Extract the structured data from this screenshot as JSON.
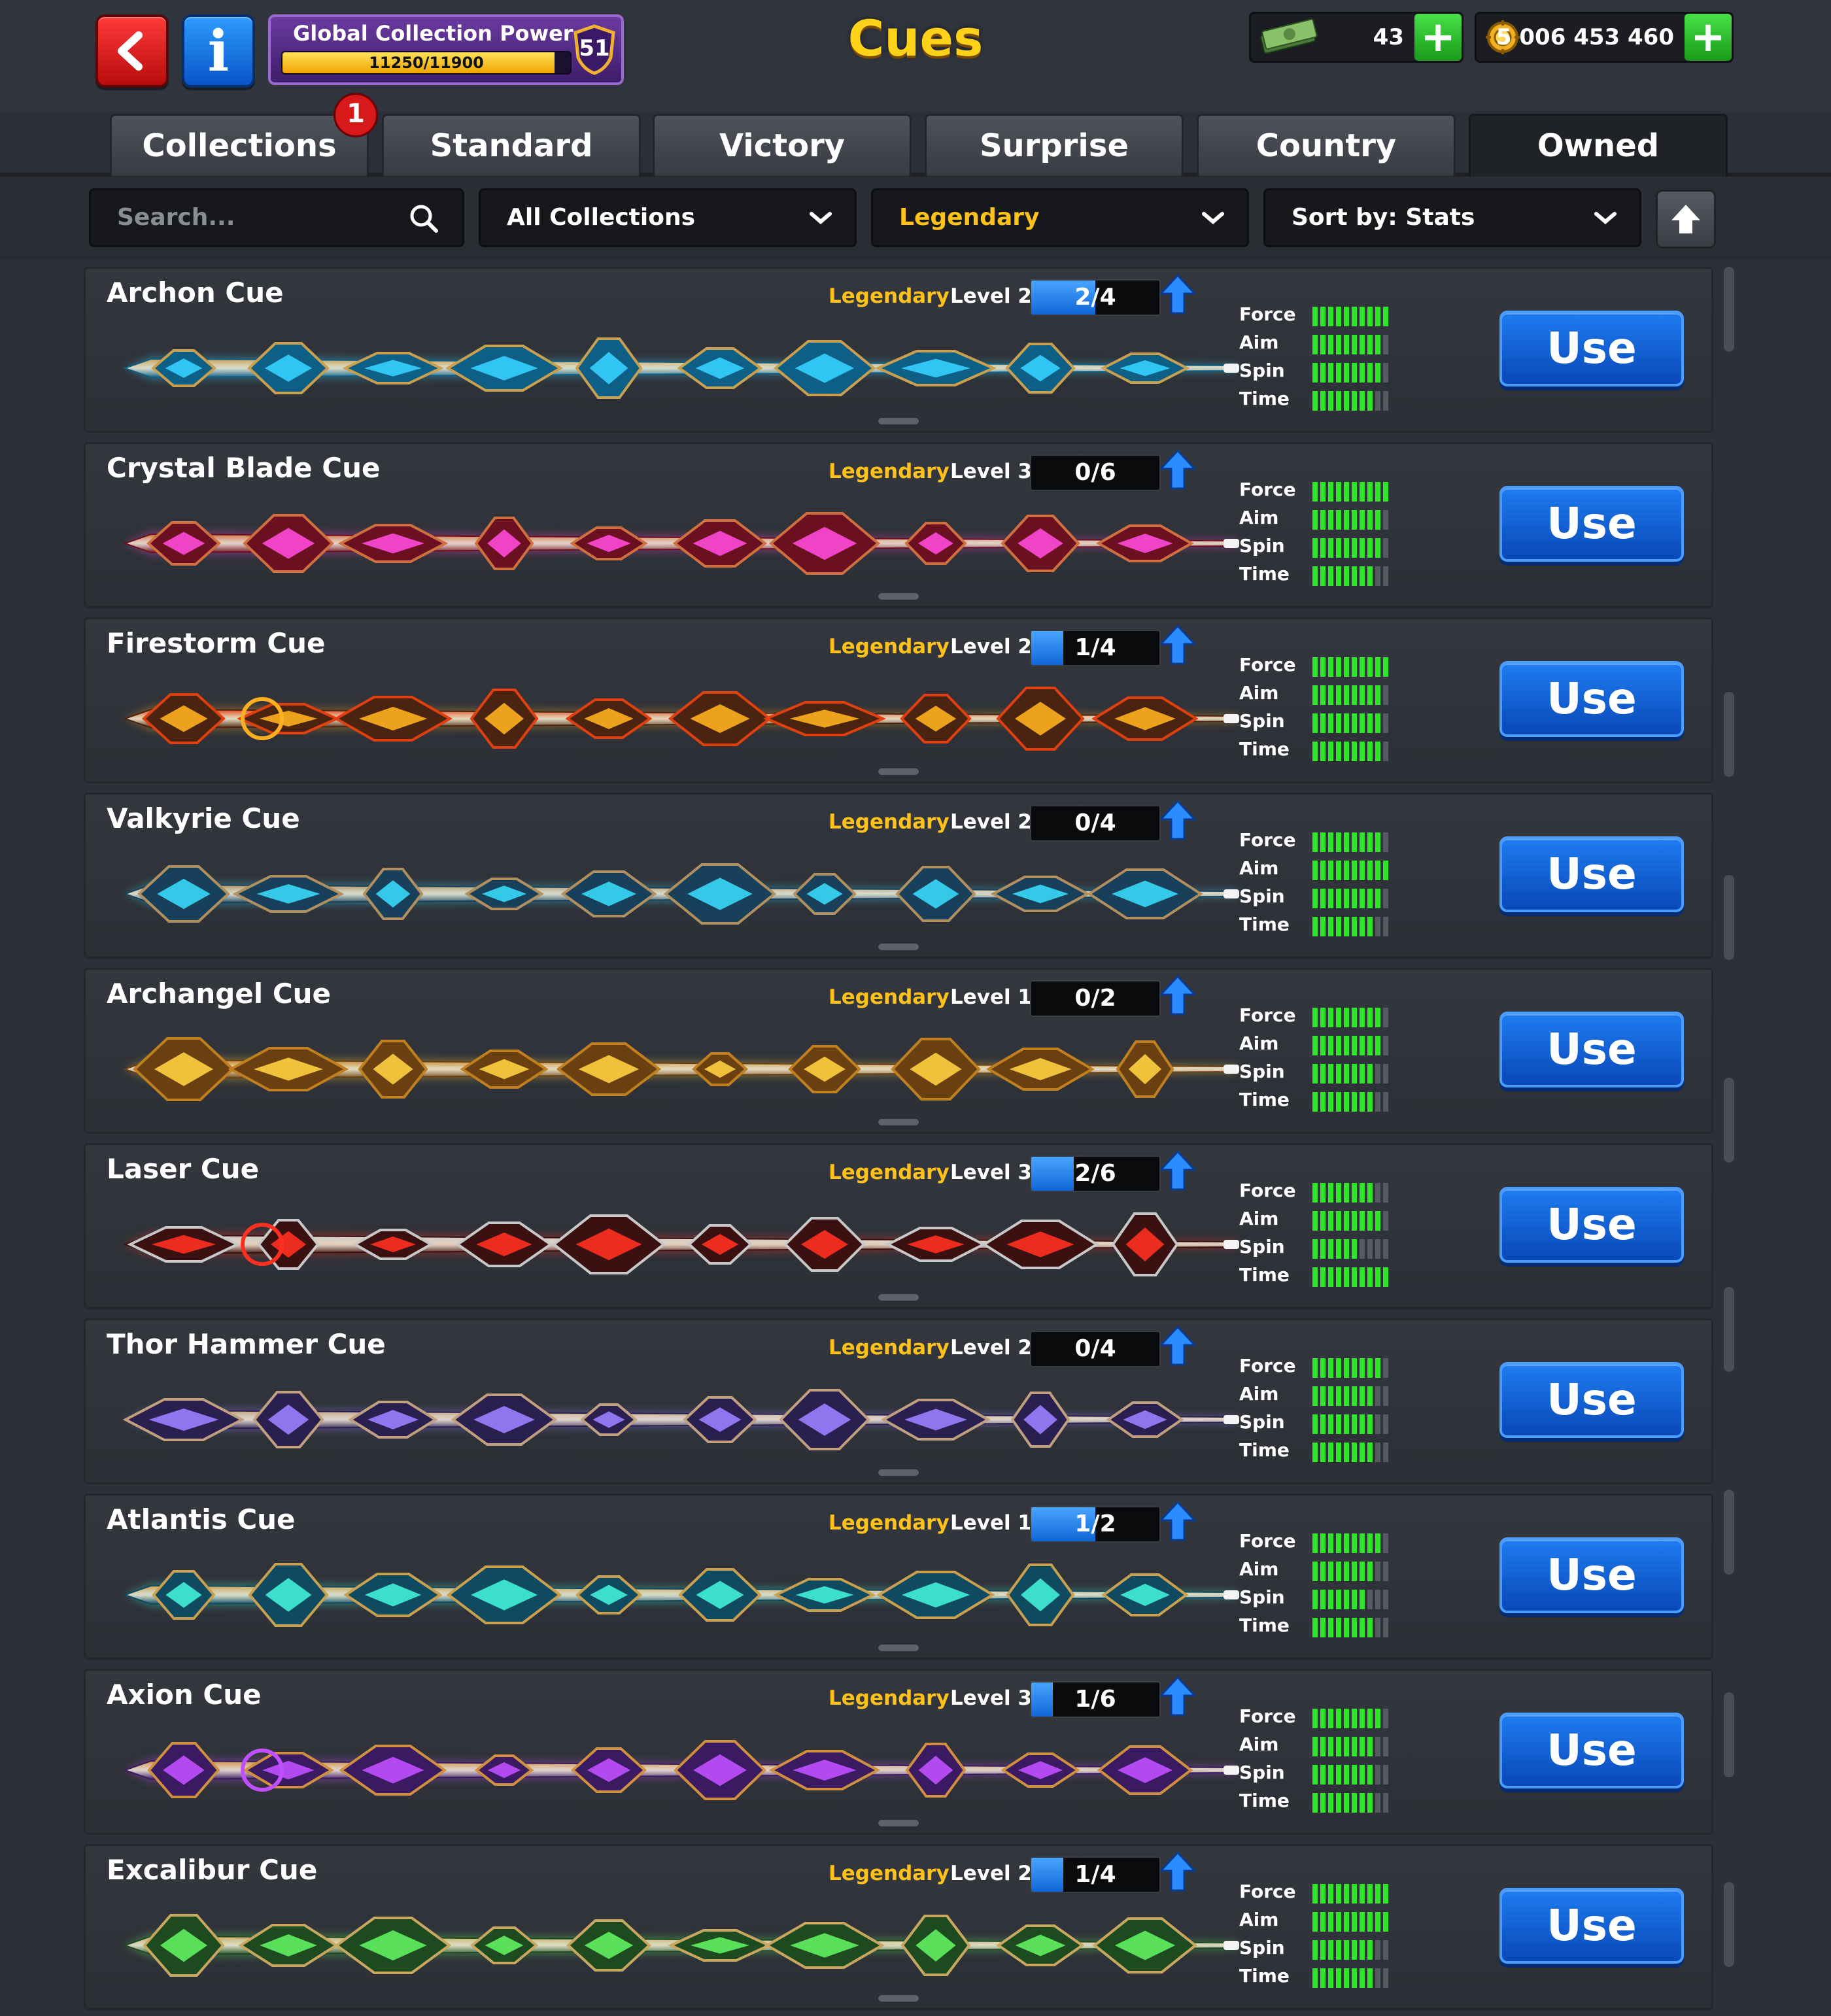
{
  "header": {
    "title": "Cues",
    "power_title": "Global Collection Power",
    "power_progress": "11250/11900",
    "power_fraction": 0.945,
    "power_level": "51",
    "cash": "43",
    "coins": "5 006 453 460",
    "icons": {
      "back": "back-arrow-icon",
      "info": "info-icon",
      "cash": "cash-stack-icon",
      "coins": "coins-icon",
      "plus": "plus-icon"
    }
  },
  "tabs": [
    {
      "label": "Collections",
      "badge": "1"
    },
    {
      "label": "Standard"
    },
    {
      "label": "Victory"
    },
    {
      "label": "Surprise"
    },
    {
      "label": "Country"
    },
    {
      "label": "Owned",
      "active": true
    }
  ],
  "filters": {
    "search_placeholder": "Search...",
    "collection": "All Collections",
    "rarity": "Legendary",
    "sort": "Sort by: Stats"
  },
  "stat_labels": [
    "Force",
    "Aim",
    "Spin",
    "Time"
  ],
  "use_label": "Use",
  "colors": {
    "legendary": "#ffc21a",
    "stat_on": "#2ee52a",
    "use_button": "#0a48b8",
    "progress": "#1e7cf0"
  },
  "cues": [
    {
      "name": "Archon Cue",
      "rarity": "Legendary",
      "level": "Level 2",
      "progress": "2/4",
      "fraction": 0.5,
      "stats": [
        10,
        9,
        9,
        8
      ],
      "palette": [
        "#35d0ff",
        "#c9a050",
        "#0e5f86"
      ]
    },
    {
      "name": "Crystal Blade Cue",
      "rarity": "Legendary",
      "level": "Level 3",
      "progress": "0/6",
      "fraction": 0,
      "stats": [
        10,
        9,
        9,
        8
      ],
      "palette": [
        "#ff4ad8",
        "#d07040",
        "#6a1020"
      ]
    },
    {
      "name": "Firestorm Cue",
      "rarity": "Legendary",
      "level": "Level 2",
      "progress": "1/4",
      "fraction": 0.25,
      "stats": [
        10,
        9,
        9,
        9
      ],
      "palette": [
        "#ffb020",
        "#e04010",
        "#4a2410"
      ]
    },
    {
      "name": "Valkyrie Cue",
      "rarity": "Legendary",
      "level": "Level 2",
      "progress": "0/4",
      "fraction": 0,
      "stats": [
        9,
        10,
        9,
        8
      ],
      "palette": [
        "#38d8f8",
        "#b09060",
        "#18405a"
      ]
    },
    {
      "name": "Archangel Cue",
      "rarity": "Legendary",
      "level": "Level 1",
      "progress": "0/2",
      "fraction": 0,
      "stats": [
        9,
        9,
        8,
        8
      ],
      "palette": [
        "#ffd040",
        "#c08020",
        "#6a4010"
      ]
    },
    {
      "name": "Laser Cue",
      "rarity": "Legendary",
      "level": "Level 3",
      "progress": "2/6",
      "fraction": 0.33,
      "stats": [
        8,
        9,
        6,
        10
      ],
      "palette": [
        "#ff3020",
        "#c8c8c8",
        "#3a1010"
      ]
    },
    {
      "name": "Thor Hammer Cue",
      "rarity": "Legendary",
      "level": "Level 2",
      "progress": "0/4",
      "fraction": 0,
      "stats": [
        9,
        8,
        8,
        8
      ],
      "palette": [
        "#9a80ff",
        "#c0a080",
        "#2a2050"
      ]
    },
    {
      "name": "Atlantis Cue",
      "rarity": "Legendary",
      "level": "Level 1",
      "progress": "1/2",
      "fraction": 0.5,
      "stats": [
        9,
        8,
        7,
        8
      ],
      "palette": [
        "#40f0d8",
        "#c8a050",
        "#104a60"
      ]
    },
    {
      "name": "Axion Cue",
      "rarity": "Legendary",
      "level": "Level 3",
      "progress": "1/6",
      "fraction": 0.17,
      "stats": [
        9,
        8,
        8,
        8
      ],
      "palette": [
        "#c050ff",
        "#d09040",
        "#3a1a60"
      ]
    },
    {
      "name": "Excalibur Cue",
      "rarity": "Legendary",
      "level": "Level 2",
      "progress": "1/4",
      "fraction": 0.25,
      "stats": [
        10,
        10,
        8,
        8
      ],
      "palette": [
        "#60f060",
        "#c8a860",
        "#1e4a20"
      ]
    }
  ]
}
